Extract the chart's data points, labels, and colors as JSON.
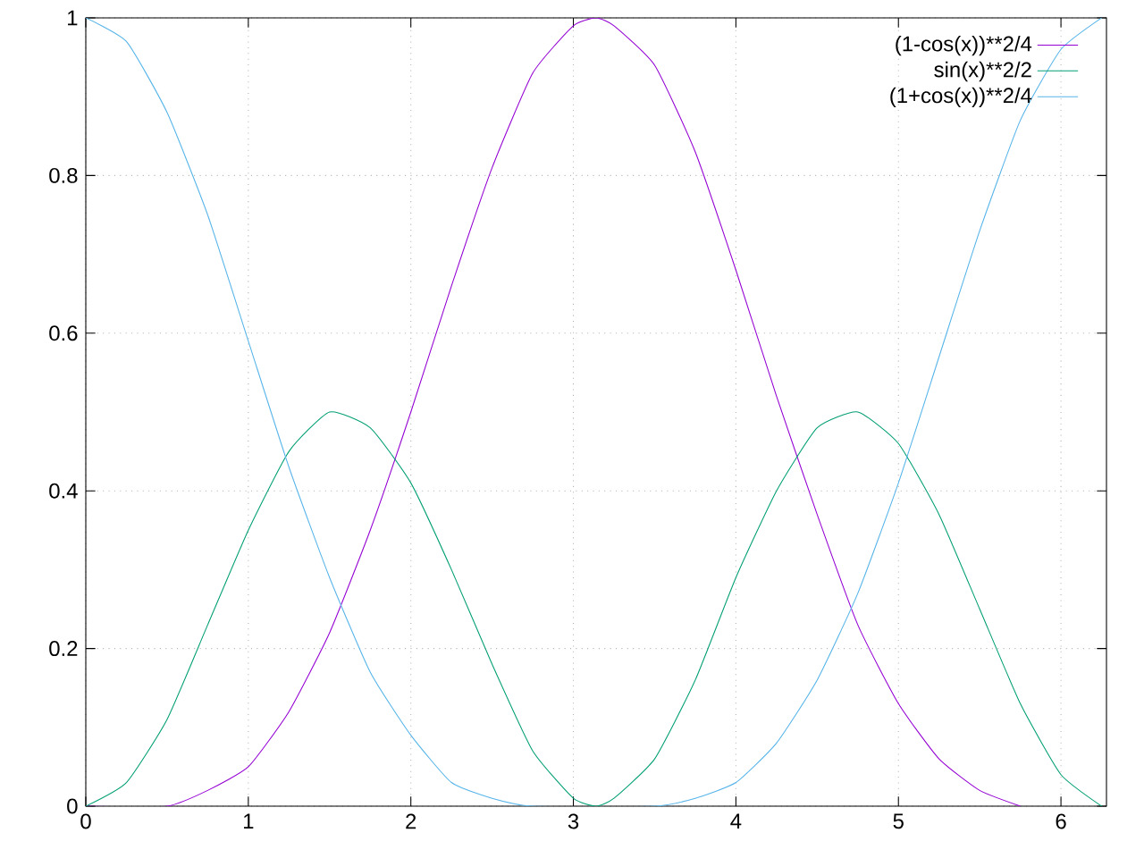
{
  "chart_data": {
    "type": "line",
    "x": [
      0,
      0.25,
      0.5,
      0.75,
      1,
      1.25,
      1.5,
      1.75,
      2,
      2.25,
      2.5,
      2.75,
      3,
      3.14,
      3.25,
      3.5,
      3.75,
      4,
      4.25,
      4.5,
      4.75,
      5,
      5.25,
      5.5,
      5.75,
      6,
      6.25,
      6.28
    ],
    "series": [
      {
        "name": "(1-cos(x))**2/4",
        "color": "#9400d3",
        "values": [
          0,
          null,
          0,
          0.02,
          0.05,
          0.12,
          0.22,
          0.35,
          0.5,
          0.66,
          0.81,
          0.93,
          0.99,
          1,
          0.99,
          0.94,
          0.83,
          0.68,
          0.52,
          0.37,
          0.23,
          0.13,
          0.06,
          0.02,
          0,
          null,
          null,
          null
        ]
      },
      {
        "name": "sin(x)**2/2",
        "color": "#009e73",
        "values": [
          0,
          0.03,
          0.11,
          0.23,
          0.35,
          0.45,
          0.5,
          0.48,
          0.41,
          0.3,
          0.18,
          0.07,
          0.01,
          0,
          0.01,
          0.06,
          0.16,
          0.29,
          0.4,
          0.48,
          0.5,
          0.46,
          0.37,
          0.25,
          0.13,
          0.04,
          0,
          0
        ]
      },
      {
        "name": "(1+cos(x))**2/4",
        "color": "#56b4e9",
        "values": [
          1,
          0.97,
          0.88,
          0.75,
          0.59,
          0.43,
          0.29,
          0.17,
          0.09,
          0.03,
          0.01,
          0,
          null,
          null,
          null,
          0,
          0.01,
          0.03,
          0.08,
          0.16,
          0.27,
          0.41,
          0.57,
          0.73,
          0.87,
          0.96,
          1,
          1
        ]
      }
    ],
    "xlim": [
      0,
      6.28
    ],
    "ylim": [
      0,
      1
    ],
    "xticks": [
      0,
      1,
      2,
      3,
      4,
      5,
      6
    ],
    "yticks": [
      0,
      0.2,
      0.4,
      0.6,
      0.8,
      1
    ],
    "grid": true,
    "legend": "top right"
  }
}
